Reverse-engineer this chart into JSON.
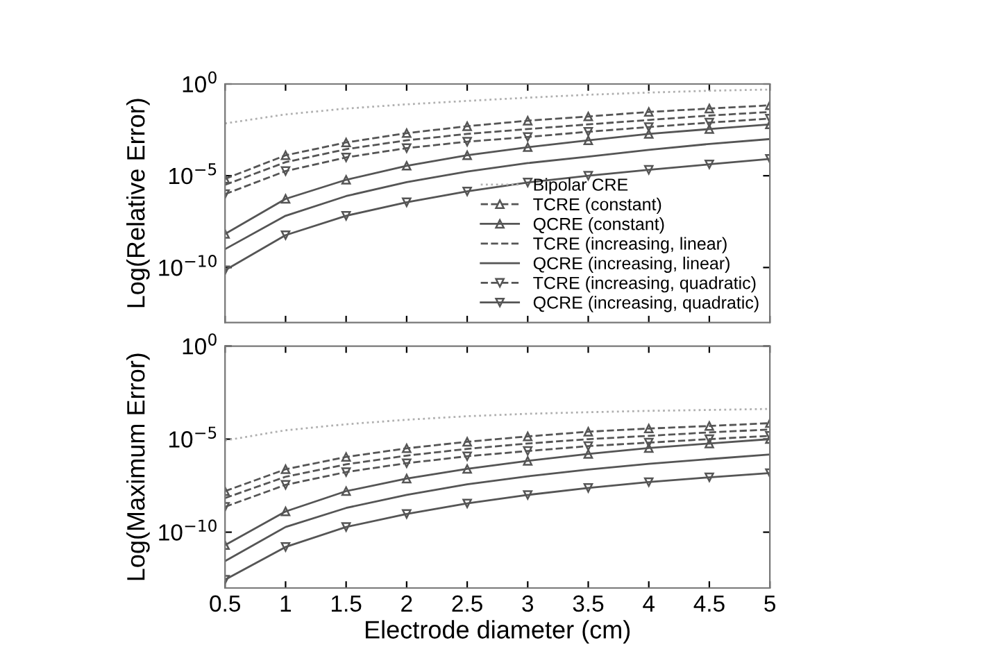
{
  "chart_data": [
    {
      "type": "line",
      "ylabel": "Log(Relative Error)",
      "log": "y",
      "xlim": [
        0.5,
        5
      ],
      "xticks": [
        0.5,
        1,
        1.5,
        2,
        2.5,
        3,
        3.5,
        4,
        4.5,
        5
      ],
      "ylim": [
        1e-13,
        1
      ],
      "yticks": [
        {
          "value": 1,
          "label": "10$^{0}$"
        },
        {
          "value": 1e-05,
          "label": "10$^{−5}$"
        },
        {
          "value": 1e-10,
          "label": "10$^{−10}$"
        }
      ],
      "tick_labels": "y",
      "grid": false,
      "legend": "bottom right",
      "x": [
        0.5,
        1,
        1.5,
        2,
        2.5,
        3,
        3.5,
        4,
        4.5,
        5
      ],
      "series": [
        {
          "name": "Bipolar CRE",
          "color": "#b0b0b0",
          "line_style": "dotted",
          "marker": "none",
          "values": [
            0.0071,
            0.022,
            0.046,
            0.078,
            0.12,
            0.18,
            0.26,
            0.34,
            0.43,
            0.5
          ]
        },
        {
          "name": "TCRE (constant)",
          "color": "#555555",
          "line_style": "dashed",
          "marker": "triangle",
          "values": [
            6.8e-06,
            0.00013,
            0.00065,
            0.0021,
            0.005,
            0.01,
            0.017,
            0.03,
            0.046,
            0.069
          ]
        },
        {
          "name": "QCRE (constant)",
          "color": "#555555",
          "line_style": "solid",
          "marker": "triangle",
          "values": [
            6.8e-09,
            5.5e-07,
            6e-06,
            3.5e-05,
            0.00013,
            0.00036,
            0.00085,
            0.0019,
            0.0035,
            0.0063
          ]
        },
        {
          "name": "TCRE (increasing, linear)",
          "color": "#555555",
          "line_style": "dashed",
          "marker": "none",
          "values": [
            3.2e-06,
            5.5e-05,
            0.00028,
            0.00085,
            0.0019,
            0.0035,
            0.0063,
            0.011,
            0.019,
            0.03
          ]
        },
        {
          "name": "QCRE (increasing, linear)",
          "color": "#555555",
          "line_style": "solid",
          "marker": "none",
          "values": [
            1e-09,
            6.6e-08,
            7.8e-07,
            4.5e-06,
            1.7e-05,
            4.9e-05,
            0.00011,
            0.00026,
            0.00054,
            0.001
          ]
        },
        {
          "name": "TCRE (increasing, quadratic)",
          "color": "#555555",
          "line_style": "dashed",
          "marker": "triangle_down",
          "values": [
            1e-06,
            1.8e-05,
            0.0001,
            0.00032,
            0.00072,
            0.0013,
            0.0025,
            0.0045,
            0.0079,
            0.013
          ]
        },
        {
          "name": "QCRE (increasing, quadratic)",
          "color": "#555555",
          "line_style": "solid",
          "marker": "triangle_down",
          "values": [
            7.1e-11,
            5.8e-09,
            6.6e-08,
            3.6e-07,
            1.4e-06,
            4.3e-06,
            1e-05,
            2.1e-05,
            4.2e-05,
            8.3e-05
          ]
        }
      ]
    },
    {
      "type": "line",
      "ylabel": "Log(Maximum Error)",
      "xlabel": "Electrode diameter (cm)",
      "log": "y",
      "xlim": [
        0.5,
        5
      ],
      "xticks": [
        0.5,
        1,
        1.5,
        2,
        2.5,
        3,
        3.5,
        4,
        4.5,
        5
      ],
      "ylim": [
        1e-13,
        1
      ],
      "yticks": [
        {
          "value": 1,
          "label": "10$^{0}$"
        },
        {
          "value": 1e-05,
          "label": "10$^{−5}$"
        },
        {
          "value": 1e-10,
          "label": "10$^{−10}$"
        }
      ],
      "grid": false,
      "x": [
        0.5,
        1,
        1.5,
        2,
        2.5,
        3,
        3.5,
        4,
        4.5,
        5
      ],
      "series": [
        {
          "color": "#b0b0b0",
          "line_style": "dotted",
          "marker": "none",
          "values": [
            8.5e-06,
            3e-05,
            6.3e-05,
            0.00011,
            0.00017,
            0.00023,
            0.00028,
            0.00033,
            0.00037,
            0.00042
          ]
        },
        {
          "color": "#555555",
          "line_style": "dashed",
          "marker": "triangle",
          "values": [
            1.6e-08,
            2.4e-07,
            1.1e-06,
            3.2e-06,
            7.2e-06,
            1.4e-05,
            2.5e-05,
            3.7e-05,
            5.1e-05,
            7.2e-05
          ]
        },
        {
          "color": "#555555",
          "line_style": "solid",
          "marker": "triangle",
          "values": [
            2e-11,
            1.3e-09,
            1.6e-08,
            7.6e-08,
            2.5e-07,
            6.8e-07,
            1.6e-06,
            3.3e-06,
            5.8e-06,
            1e-05
          ]
        },
        {
          "color": "#555555",
          "line_style": "dashed",
          "marker": "none",
          "values": [
            6.8e-09,
            9.5e-08,
            4.4e-07,
            1.3e-06,
            3e-06,
            5.8e-06,
            1e-05,
            1.5e-05,
            2.3e-05,
            3.3e-05
          ]
        },
        {
          "color": "#555555",
          "line_style": "solid",
          "marker": "none",
          "values": [
            2.8e-12,
            1.9e-10,
            2e-09,
            1e-08,
            3.7e-08,
            1e-07,
            2.3e-07,
            4.7e-07,
            8.5e-07,
            1.5e-06
          ]
        },
        {
          "color": "#555555",
          "line_style": "dashed",
          "marker": "triangle_down",
          "values": [
            2.3e-09,
            3.5e-08,
            1.7e-07,
            5.1e-07,
            1.2e-06,
            2.3e-06,
            4.2e-06,
            6.5e-06,
            1e-05,
            1.5e-05
          ]
        },
        {
          "color": "#555555",
          "line_style": "solid",
          "marker": "triangle_down",
          "values": [
            2.8e-13,
            1.6e-11,
            1.9e-10,
            9.5e-10,
            3.5e-09,
            1e-08,
            2.4e-08,
            4.9e-08,
            8.9e-08,
            1.5e-07
          ]
        }
      ]
    }
  ]
}
